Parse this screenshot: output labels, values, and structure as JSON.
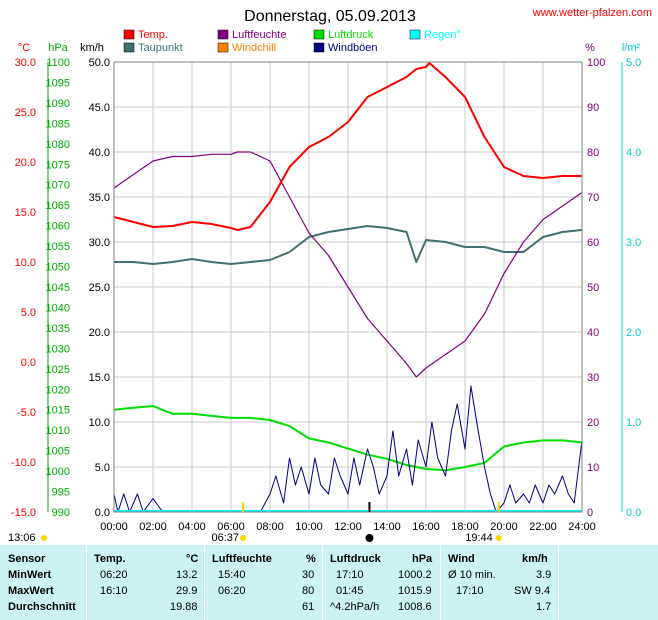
{
  "chart_data": {
    "type": "line",
    "title": "Donnerstag, 05.09.2013",
    "source": "www.wetter-pfalzen.com",
    "x_ticks": [
      "00:00",
      "02:00",
      "04:00",
      "06:00",
      "08:00",
      "10:00",
      "12:00",
      "14:00",
      "16:00",
      "18:00",
      "20:00",
      "22:00",
      "24:00"
    ],
    "axes": {
      "temp": {
        "unit": "°C",
        "ylim": [
          -15,
          30
        ],
        "ticks": [
          "30.0",
          "25.0",
          "20.0",
          "15.0",
          "10.0",
          "5.0",
          "0.0",
          "-5.0",
          "-10.0",
          "-15.0"
        ],
        "color": "#ff0000"
      },
      "press": {
        "unit": "hPa",
        "ylim": [
          990,
          1100
        ],
        "ticks": [
          "1100",
          "1095",
          "1090",
          "1085",
          "1080",
          "1075",
          "1070",
          "1065",
          "1060",
          "1055",
          "1050",
          "1045",
          "1040",
          "1035",
          "1030",
          "1025",
          "1020",
          "1015",
          "1010",
          "1005",
          "1000",
          "995",
          "990"
        ],
        "color": "#00aa00"
      },
      "wind": {
        "unit": "km/h",
        "ylim": [
          0,
          50
        ],
        "ticks": [
          "50.0",
          "45.0",
          "40.0",
          "35.0",
          "30.0",
          "25.0",
          "20.0",
          "15.0",
          "10.0",
          "5.0",
          "0.0"
        ],
        "color": "#000080"
      },
      "hum": {
        "unit": "%",
        "ylim": [
          0,
          100
        ],
        "ticks": [
          "100",
          "90",
          "80",
          "70",
          "60",
          "50",
          "40",
          "30",
          "20",
          "10",
          "0"
        ],
        "color": "#800080"
      },
      "rain": {
        "unit": "l/m²",
        "ylim": [
          0,
          5
        ],
        "ticks": [
          "5.0",
          "4.0",
          "3.0",
          "2.0",
          "1.0",
          "0.0"
        ],
        "color": "#00cccc"
      }
    },
    "legend": [
      {
        "name": "Temp.",
        "color": "#ff0000"
      },
      {
        "name": "Luftfeuchte",
        "color": "#800080"
      },
      {
        "name": "Luftdruck",
        "color": "#00dd00"
      },
      {
        "name": "Regen°",
        "color": "#00ffff"
      },
      {
        "name": "Taupunkt",
        "color": "#407070"
      },
      {
        "name": "Windchill",
        "color": "#ff8000"
      },
      {
        "name": "Windböen",
        "color": "#000080"
      }
    ],
    "series": [
      {
        "name": "Temp.",
        "axis": "temp",
        "color": "#ff0000",
        "x": [
          0,
          1,
          2,
          3,
          4,
          5,
          6,
          6.33,
          7,
          8,
          9,
          10,
          11,
          12,
          13,
          14,
          15,
          15.5,
          16,
          16.17,
          17,
          18,
          19,
          20,
          21,
          22,
          23,
          24
        ],
        "values": [
          14.5,
          14,
          13.5,
          13.6,
          14,
          13.8,
          13.4,
          13.2,
          13.5,
          16,
          19.5,
          21.5,
          22.5,
          24,
          26.5,
          27.5,
          28.5,
          29.3,
          29.5,
          29.9,
          28.5,
          26.5,
          22.5,
          19.5,
          18.6,
          18.4,
          18.6,
          18.6
        ]
      },
      {
        "name": "Taupunkt",
        "axis": "temp",
        "color": "#407070",
        "x": [
          0,
          1,
          2,
          3,
          4,
          5,
          6,
          7,
          8,
          9,
          10,
          11,
          12,
          13,
          14,
          15,
          15.5,
          16,
          17,
          18,
          19,
          20,
          21,
          22,
          23,
          24
        ],
        "values": [
          10,
          10,
          9.8,
          10,
          10.3,
          10,
          9.8,
          10,
          10.2,
          11,
          12.5,
          13,
          13.3,
          13.6,
          13.4,
          13,
          10,
          12.2,
          12,
          11.5,
          11.5,
          11,
          11,
          12.5,
          13,
          13.2
        ]
      },
      {
        "name": "Luftfeuchte",
        "axis": "hum",
        "color": "#800080",
        "x": [
          0,
          1,
          2,
          3,
          4,
          5,
          6,
          6.33,
          7,
          8,
          9,
          10,
          11,
          12,
          13,
          14,
          15,
          15.5,
          16,
          17,
          18,
          19,
          20,
          21,
          22,
          23,
          24
        ],
        "values": [
          72,
          75,
          78,
          79,
          79,
          79.5,
          79.5,
          80,
          80,
          78,
          70,
          62,
          57,
          50,
          43,
          38,
          33,
          30,
          32,
          35,
          38,
          44,
          53,
          60,
          65,
          68,
          71
        ]
      },
      {
        "name": "Luftdruck",
        "axis": "press",
        "color": "#00dd00",
        "x": [
          0,
          1,
          2,
          3,
          4,
          5,
          6,
          7,
          8,
          9,
          10,
          11,
          12,
          13,
          14,
          15,
          16,
          17,
          18,
          19,
          20,
          21,
          22,
          23,
          24
        ],
        "values": [
          1015,
          1015.5,
          1015.9,
          1014,
          1014,
          1013.5,
          1013,
          1013,
          1012.5,
          1011,
          1008,
          1007,
          1005.5,
          1004,
          1003,
          1001.5,
          1000.5,
          1000.2,
          1001,
          1002,
          1006,
          1007,
          1007.5,
          1007.5,
          1007
        ]
      },
      {
        "name": "Windböen",
        "axis": "wind",
        "color": "#000080",
        "x": [
          0,
          0.2,
          0.5,
          0.8,
          1.2,
          1.5,
          2,
          2.5,
          3,
          3.5,
          4,
          4.5,
          5,
          5.5,
          6,
          6.5,
          7,
          7.2,
          7.5,
          8,
          8.3,
          8.7,
          9,
          9.3,
          9.6,
          10,
          10.3,
          10.6,
          11,
          11.3,
          11.6,
          12,
          12.3,
          12.6,
          13,
          13.3,
          13.6,
          14,
          14.3,
          14.6,
          15,
          15.3,
          15.6,
          16,
          16.3,
          16.6,
          17,
          17.3,
          17.6,
          18,
          18.3,
          18.6,
          19,
          19.3,
          19.6,
          20,
          20.3,
          20.6,
          21,
          21.3,
          21.6,
          22,
          22.3,
          22.6,
          23,
          23.3,
          23.6,
          24
        ],
        "values": [
          2,
          0,
          2,
          0,
          2,
          0,
          1.5,
          0,
          0,
          0,
          0,
          0,
          0,
          0,
          0,
          0,
          0,
          0,
          0,
          2,
          4,
          1,
          6,
          3,
          5,
          2,
          6,
          3,
          2,
          6,
          4,
          2,
          6,
          3,
          7,
          5,
          2,
          4,
          9,
          4,
          7,
          3,
          8,
          5,
          10,
          6,
          4,
          9,
          12,
          7,
          14,
          10,
          5,
          2,
          0,
          1,
          3,
          1,
          2,
          1,
          3,
          1,
          3,
          2,
          4,
          2,
          1,
          8
        ]
      }
    ],
    "markers": {
      "sunrise": "06:37",
      "sunset": "19:44",
      "left_time": "13:06"
    }
  },
  "stats": {
    "headers": {
      "sensor": "Sensor",
      "temp": "Temp.",
      "temp_unit": "°C",
      "hum": "Luftfeuchte",
      "hum_unit": "%",
      "press": "Luftdruck",
      "press_unit": "hPa",
      "wind": "Wind",
      "wind_unit": "km/h"
    },
    "rows": [
      {
        "label": "MinWert",
        "temp_time": "06:20",
        "temp_val": "13.2",
        "hum_time": "15:40",
        "hum_val": "30",
        "press_time": "17:10",
        "press_val": "1000.2",
        "wind_time": "Ø 10 min.",
        "wind_val": "3.9"
      },
      {
        "label": "MaxWert",
        "temp_time": "16:10",
        "temp_val": "29.9",
        "hum_time": "06:20",
        "hum_val": "80",
        "press_time": "01:45",
        "press_val": "1015.9",
        "wind_time": "17:10",
        "wind_val": "SW 9.4"
      },
      {
        "label": "Durchschnitt",
        "temp_time": "",
        "temp_val": "19.88",
        "hum_time": "",
        "hum_val": "61",
        "press_time": "^4.2hPa/h",
        "press_val": "1008.6",
        "wind_time": "",
        "wind_val": "1.7"
      }
    ]
  }
}
